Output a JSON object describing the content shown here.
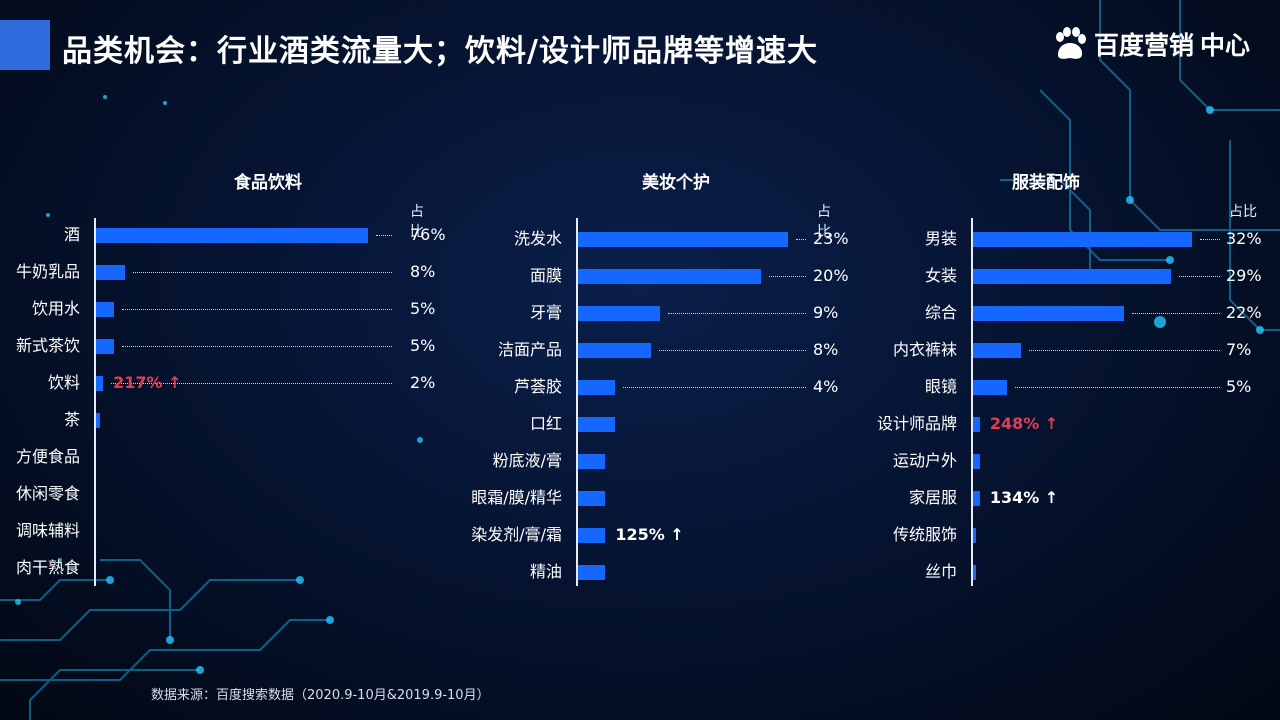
{
  "title": "品类机会：行业酒类流量大；饮料/设计师品牌等增速大",
  "logo": {
    "name": "百度营销",
    "suffix": "中心",
    "icon": "paw-icon"
  },
  "source": "数据来源：百度搜索数据（2020.9-10月&2019.9-10月）",
  "colors": {
    "bar": "#1667ff",
    "growth_red": "#e23d53",
    "title_accent": "#2f6bdc"
  },
  "chart_data": [
    {
      "type": "bar",
      "orientation": "horizontal",
      "title": "食品饮料",
      "share_label": "占比",
      "categories": [
        "酒",
        "牛奶乳品",
        "饮用水",
        "新式茶饮",
        "饮料",
        "茶",
        "方便食品",
        "休闲零食",
        "调味辅料",
        "肉干熟食"
      ],
      "values": [
        76,
        8,
        5,
        5,
        2,
        1,
        0,
        0,
        0,
        0
      ],
      "labels": [
        "76%",
        "8%",
        "5%",
        "5%",
        "2%",
        "",
        "",
        "",
        "",
        ""
      ],
      "growth": [
        {
          "index": 4,
          "text": "217% ↑",
          "color": "red"
        }
      ]
    },
    {
      "type": "bar",
      "orientation": "horizontal",
      "title": "美妆个护",
      "share_label": "占比",
      "categories": [
        "洗发水",
        "面膜",
        "牙膏",
        "洁面产品",
        "芦荟胶",
        "口红",
        "粉底液/膏",
        "眼霜/膜/精华",
        "染发剂/膏/霜",
        "精油"
      ],
      "values": [
        23,
        20,
        9,
        8,
        4,
        4,
        3,
        3,
        3,
        3
      ],
      "labels": [
        "23%",
        "20%",
        "9%",
        "8%",
        "4%",
        "",
        "",
        "",
        "",
        ""
      ],
      "growth": [
        {
          "index": 8,
          "text": "125% ↑",
          "color": "white"
        }
      ]
    },
    {
      "type": "bar",
      "orientation": "horizontal",
      "title": "服装配饰",
      "share_label": "占比",
      "categories": [
        "男装",
        "女装",
        "综合",
        "内衣裤袜",
        "眼镜",
        "设计师品牌",
        "运动户外",
        "家居服",
        "传统服饰",
        "丝巾"
      ],
      "values": [
        32,
        29,
        22,
        7,
        5,
        1,
        1,
        1,
        0.5,
        0.3
      ],
      "labels": [
        "32%",
        "29%",
        "22%",
        "7%",
        "5%",
        "",
        "",
        "",
        "",
        ""
      ],
      "growth": [
        {
          "index": 5,
          "text": "248% ↑",
          "color": "red"
        },
        {
          "index": 7,
          "text": "134% ↑",
          "color": "white"
        }
      ]
    }
  ]
}
